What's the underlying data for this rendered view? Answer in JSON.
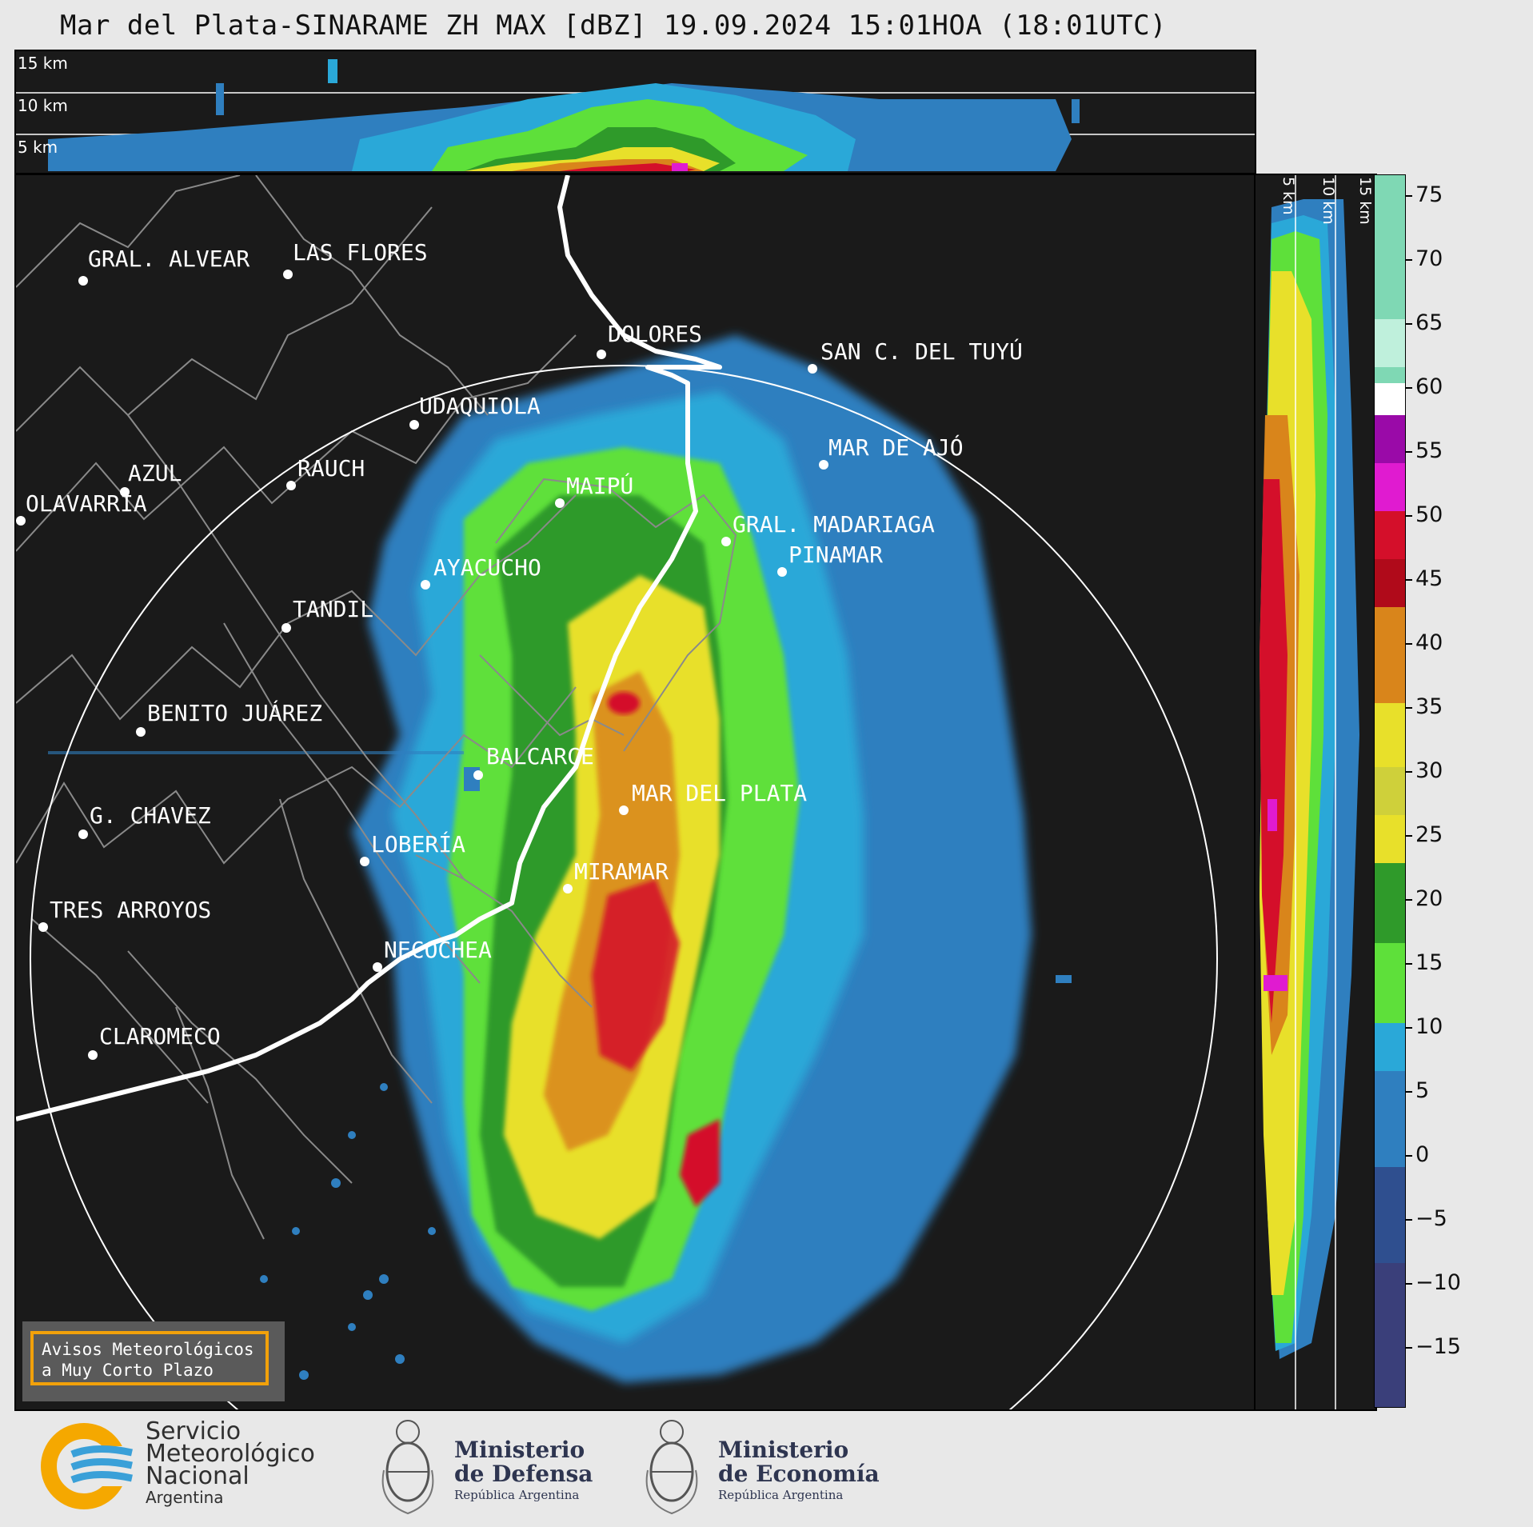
{
  "title": "Mar del Plata-SINARAME ZH MAX [dBZ] 19.09.2024 15:01HOA (18:01UTC)",
  "top_panel": {
    "altitude_labels": [
      "15 km",
      "10 km",
      "5 km"
    ]
  },
  "side_panel": {
    "altitude_labels": [
      "5 km",
      "10 km",
      "15 km"
    ]
  },
  "colorbar": {
    "unit": "dBZ",
    "ticks": [
      "75",
      "70",
      "65",
      "60",
      "55",
      "50",
      "45",
      "40",
      "35",
      "30",
      "25",
      "20",
      "15",
      "10",
      "5",
      "0",
      "−5",
      "−10",
      "−15"
    ],
    "colors": {
      "high_teal": "#7fd8b4",
      "white": "#ffffff",
      "purple": "#9a0aa8",
      "magenta": "#e01bd0",
      "red": "#d40f2a",
      "orange": "#d9851b",
      "yellow": "#e8e02a",
      "green": "#2f9a2a",
      "light_green": "#5ee03a",
      "light_blue": "#2aa8d8",
      "blue": "#2f7fbf",
      "dark_blue": "#2f4f8f",
      "navy": "#3a3f7a"
    }
  },
  "map": {
    "cities": [
      {
        "name": "GRAL. ALVEAR"
      },
      {
        "name": "LAS FLORES"
      },
      {
        "name": "DOLORES"
      },
      {
        "name": "SAN C. DEL TUYÚ"
      },
      {
        "name": "UDAQUIOLA"
      },
      {
        "name": "MAR DE AJÓ"
      },
      {
        "name": "AZUL"
      },
      {
        "name": "RAUCH"
      },
      {
        "name": "OLAVARRÍA"
      },
      {
        "name": "MAIPÚ"
      },
      {
        "name": "GRAL. MADARIAGA"
      },
      {
        "name": "PINAMAR"
      },
      {
        "name": "AYACUCHO"
      },
      {
        "name": "TANDIL"
      },
      {
        "name": "BENITO JUÁREZ"
      },
      {
        "name": "BALCARCE"
      },
      {
        "name": "MAR DEL PLATA"
      },
      {
        "name": "G. CHAVEZ"
      },
      {
        "name": "LOBERÍA"
      },
      {
        "name": "MIRAMAR"
      },
      {
        "name": "TRES ARROYOS"
      },
      {
        "name": "NECOCHEA"
      },
      {
        "name": "CLAROMECO"
      }
    ],
    "warning": [
      "Avisos Meteorológicos",
      "a Muy Corto Plazo"
    ]
  },
  "footer": {
    "smn": [
      "Servicio",
      "Meteorológico",
      "Nacional",
      "Argentina"
    ],
    "defensa": [
      "Ministerio",
      "de Defensa",
      "República Argentina"
    ],
    "economia": [
      "Ministerio",
      "de Economía",
      "República Argentina"
    ]
  }
}
